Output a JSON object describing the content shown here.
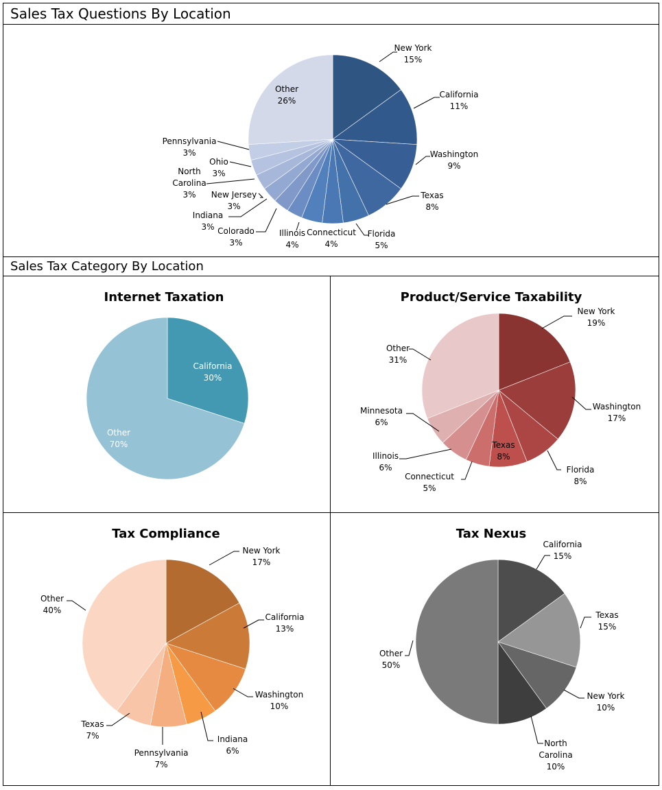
{
  "header": {
    "main_title": "Sales Tax Questions By Location",
    "section_title": "Sales Tax Category By Location"
  },
  "chart_data": [
    {
      "type": "pie",
      "title": "",
      "categories": [
        "New York",
        "California",
        "Washington",
        "Texas",
        "Florida",
        "Connecticut",
        "Illinois",
        "Colorado",
        "Indiana",
        "New Jersey",
        "North Carolina",
        "Ohio",
        "Pennsylvania",
        "Other"
      ],
      "values": [
        15,
        11,
        9,
        8,
        5,
        4,
        4,
        3,
        3,
        3,
        3,
        3,
        3,
        26
      ],
      "labels": [
        "15%",
        "11%",
        "9%",
        "8%",
        "5%",
        "4%",
        "4%",
        "3%",
        "3%",
        "3%",
        "3%",
        "3%",
        "3%",
        "26%"
      ],
      "colors": [
        "#2f5582",
        "#32598c",
        "#375f96",
        "#3f68a0",
        "#4371aa",
        "#4a78b4",
        "#5180bd",
        "#6b8dc3",
        "#8099c9",
        "#94a9d2",
        "#a7b7da",
        "#b6c3e0",
        "#c2cde6",
        "#d3d9e9"
      ]
    },
    {
      "type": "pie",
      "title": "Internet Taxation",
      "categories": [
        "California",
        "Other"
      ],
      "values": [
        30,
        70
      ],
      "labels": [
        "30%",
        "70%"
      ],
      "colors": [
        "#4299b1",
        "#95c3d5"
      ]
    },
    {
      "type": "pie",
      "title": "Product/Service Taxability",
      "categories": [
        "New York",
        "Washington",
        "Florida",
        "Texas",
        "Connecticut",
        "Illinois",
        "Minnesota",
        "Other"
      ],
      "values": [
        19,
        17,
        8,
        8,
        5,
        6,
        6,
        31
      ],
      "labels": [
        "19%",
        "17%",
        "8%",
        "8%",
        "5%",
        "6%",
        "6%",
        "31%"
      ],
      "colors": [
        "#8a3432",
        "#9b3d3b",
        "#ac4644",
        "#bd4f4d",
        "#cc6e6c",
        "#d58f8e",
        "#dfb0b0",
        "#e8c8c8"
      ]
    },
    {
      "type": "pie",
      "title": "Tax Compliance",
      "categories": [
        "New York",
        "California",
        "Washington",
        "Indiana",
        "Pennsylvania",
        "Texas",
        "Other"
      ],
      "values": [
        17,
        13,
        10,
        6,
        7,
        7,
        40
      ],
      "labels": [
        "17%",
        "13%",
        "10%",
        "6%",
        "7%",
        "7%",
        "40%"
      ],
      "colors": [
        "#b36b2f",
        "#cc7a38",
        "#e58a40",
        "#f79a45",
        "#f5ae80",
        "#f8c5a8",
        "#fbd6c3"
      ]
    },
    {
      "type": "pie",
      "title": "Tax Nexus",
      "categories": [
        "California",
        "Texas",
        "New York",
        "North Carolina",
        "Other"
      ],
      "values": [
        15,
        15,
        10,
        10,
        50
      ],
      "labels": [
        "15%",
        "15%",
        "10%",
        "10%",
        "50%"
      ],
      "colors": [
        "#4d4d4d",
        "#969696",
        "#666666",
        "#3e3e3e",
        "#7a7a7a"
      ]
    }
  ]
}
